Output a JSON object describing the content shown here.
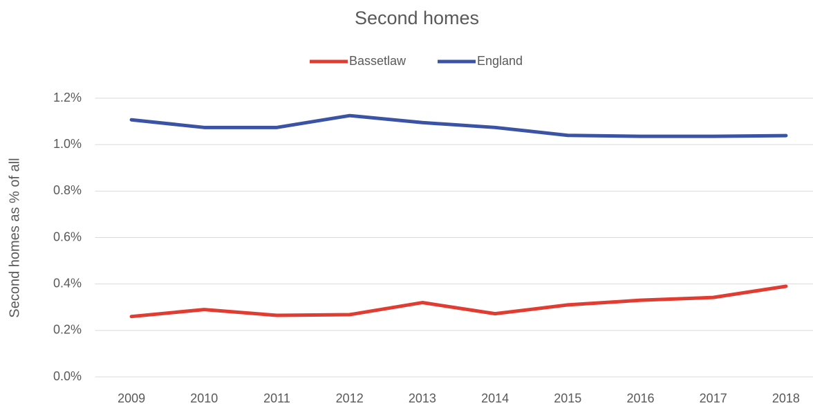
{
  "chart_data": {
    "type": "line",
    "title": "Second homes",
    "y_label": "Second homes as % of all",
    "categories": [
      "2009",
      "2010",
      "2011",
      "2012",
      "2013",
      "2014",
      "2015",
      "2016",
      "2017",
      "2018"
    ],
    "series": [
      {
        "name": "Bassetlaw",
        "color": "#e03c31",
        "values": [
          0.26,
          0.29,
          0.265,
          0.268,
          0.32,
          0.272,
          0.31,
          0.33,
          0.342,
          0.39
        ]
      },
      {
        "name": "England",
        "color": "#3a53a4",
        "values": [
          1.107,
          1.074,
          1.074,
          1.125,
          1.095,
          1.074,
          1.04,
          1.036,
          1.036,
          1.039
        ]
      }
    ],
    "ylim": [
      0,
      1.2
    ],
    "yticks": [
      {
        "value": 0,
        "label": "0.0%"
      },
      {
        "value": 0.2,
        "label": "0.2%"
      },
      {
        "value": 0.4,
        "label": "0.4%"
      },
      {
        "value": 0.6,
        "label": "0.6%"
      },
      {
        "value": 0.8,
        "label": "0.8%"
      },
      {
        "value": 1.0,
        "label": "1.0%"
      },
      {
        "value": 1.2,
        "label": "1.2%"
      }
    ],
    "grid": true,
    "legend": "top"
  }
}
